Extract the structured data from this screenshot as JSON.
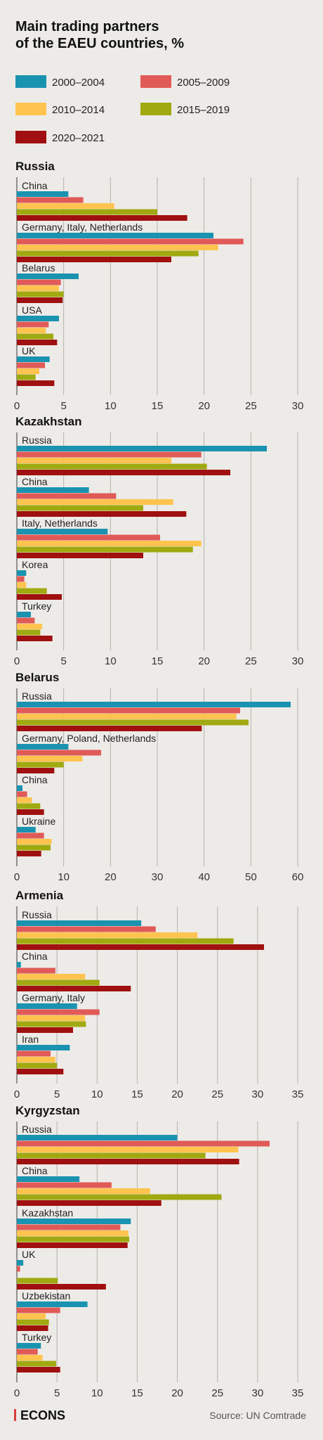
{
  "title_line1": "Main trading partners",
  "title_line2": "of the EAEU countries, %",
  "legend": [
    {
      "label": "2000–2004",
      "color": "#1a93b0"
    },
    {
      "label": "2005–2009",
      "color": "#e05a57"
    },
    {
      "label": "2010–2014",
      "color": "#ffc34f"
    },
    {
      "label": "2015–2019",
      "color": "#a0a910"
    },
    {
      "label": "2020–2021",
      "color": "#a01010"
    }
  ],
  "footer": {
    "brand": "ECONS",
    "source": "Source: UN Comtrade",
    "brand_color": "#d9403e"
  },
  "chart_data": [
    {
      "type": "bar",
      "title": "Russia",
      "series_names": [
        "2000–2004",
        "2005–2009",
        "2010–2014",
        "2015–2019",
        "2020–2021"
      ],
      "categories": [
        "China",
        "Germany, Italy, Netherlands",
        "Belarus",
        "USA",
        "UK"
      ],
      "values": [
        [
          5.5,
          7.1,
          10.4,
          15.0,
          18.2
        ],
        [
          21.0,
          24.2,
          21.5,
          19.4,
          16.5
        ],
        [
          6.6,
          4.7,
          4.5,
          5.0,
          4.9
        ],
        [
          4.5,
          3.4,
          3.1,
          3.9,
          4.3
        ],
        [
          3.5,
          3.0,
          2.4,
          2.0,
          4.0
        ]
      ],
      "ticks": [
        0,
        5,
        10,
        15,
        20,
        25,
        30
      ],
      "xlim": [
        0,
        30
      ]
    },
    {
      "type": "bar",
      "title": "Kazakhstan",
      "series_names": [
        "2000–2004",
        "2005–2009",
        "2010–2014",
        "2015–2019",
        "2020–2021"
      ],
      "categories": [
        "Russia",
        "China",
        "Italy, Netherlands",
        "Korea",
        "Turkey"
      ],
      "values": [
        [
          26.7,
          19.7,
          16.5,
          20.3,
          22.8
        ],
        [
          7.7,
          10.6,
          16.7,
          13.5,
          18.1
        ],
        [
          9.7,
          15.3,
          19.7,
          18.8,
          13.5
        ],
        [
          1.0,
          0.8,
          1.0,
          3.2,
          4.8
        ],
        [
          1.5,
          1.9,
          2.7,
          2.5,
          3.8
        ]
      ],
      "ticks": [
        0,
        5,
        10,
        15,
        20,
        25,
        30
      ],
      "xlim": [
        0,
        30
      ]
    },
    {
      "type": "bar",
      "title": "Belarus",
      "series_names": [
        "2000–2004",
        "2005–2009",
        "2010–2014",
        "2015–2019",
        "2020–2021"
      ],
      "categories": [
        "Russia",
        "Germany, Poland, Netherlands",
        "China",
        "Ukraine"
      ],
      "values": [
        [
          58.5,
          47.7,
          46.9,
          49.5,
          39.5
        ],
        [
          11.0,
          18.0,
          14.0,
          10.0,
          8.0
        ],
        [
          1.2,
          2.2,
          3.2,
          5.0,
          5.8
        ],
        [
          4.0,
          5.8,
          7.4,
          7.2,
          5.2
        ]
      ],
      "ticks": [
        0,
        10,
        20,
        30,
        40,
        50,
        60
      ],
      "xlim": [
        0,
        60
      ]
    },
    {
      "type": "bar",
      "title": "Armenia",
      "series_names": [
        "2000–2004",
        "2005–2009",
        "2010–2014",
        "2015–2019",
        "2020–2021"
      ],
      "categories": [
        "Russia",
        "China",
        "Germany, Italy",
        "Iran"
      ],
      "values": [
        [
          15.5,
          17.3,
          22.5,
          27.0,
          30.8
        ],
        [
          0.5,
          4.8,
          8.5,
          10.3,
          14.2
        ],
        [
          7.5,
          10.3,
          8.5,
          8.6,
          7.0
        ],
        [
          6.6,
          4.2,
          4.8,
          5.0,
          5.8
        ]
      ],
      "ticks": [
        0,
        5,
        10,
        15,
        20,
        25,
        30,
        35
      ],
      "xlim": [
        0,
        35
      ]
    },
    {
      "type": "bar",
      "title": "Kyrgyzstan",
      "series_names": [
        "2000–2004",
        "2005–2009",
        "2010–2014",
        "2015–2019",
        "2020–2021"
      ],
      "categories": [
        "Russia",
        "China",
        "Kazakhstan",
        "UK",
        "Uzbekistan",
        "Turkey"
      ],
      "values": [
        [
          20.0,
          31.5,
          27.6,
          23.5,
          27.7
        ],
        [
          7.8,
          11.8,
          16.6,
          25.5,
          18.0
        ],
        [
          14.2,
          12.9,
          13.9,
          14.0,
          13.8
        ],
        [
          0.8,
          0.4,
          0.0,
          5.1,
          11.1
        ],
        [
          8.8,
          5.4,
          3.6,
          4.0,
          3.9
        ],
        [
          3.0,
          2.6,
          3.2,
          4.9,
          5.4
        ]
      ],
      "ticks": [
        0,
        5,
        10,
        15,
        20,
        25,
        30,
        35
      ],
      "xlim": [
        0,
        35
      ]
    }
  ]
}
